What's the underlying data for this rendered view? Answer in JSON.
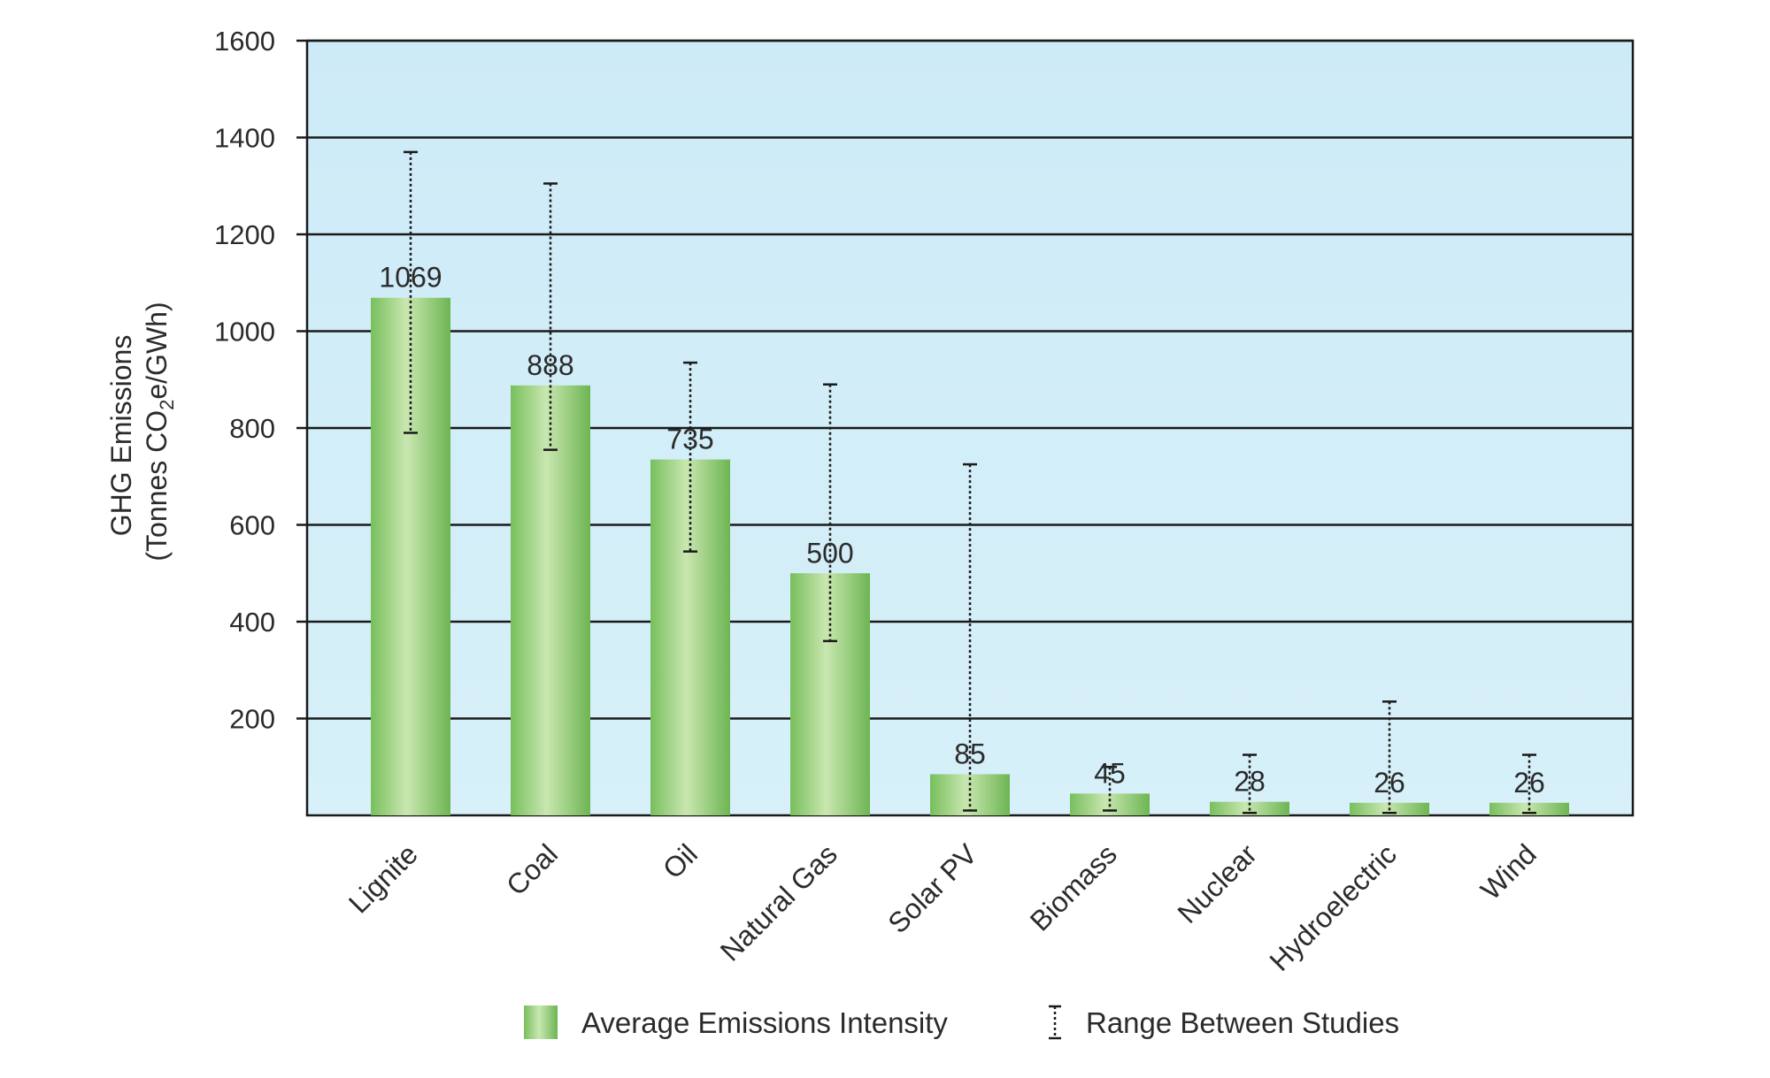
{
  "chart_data": {
    "type": "bar",
    "title": "",
    "xlabel": "",
    "ylabel_line1": "GHG Emissions",
    "ylabel_line2_prefix": "(Tonnes CO",
    "ylabel_line2_sub": "2",
    "ylabel_line2_suffix": "e/GWh)",
    "ylim": [
      0,
      1600
    ],
    "yticks": [
      200,
      400,
      600,
      800,
      1000,
      1200,
      1400,
      1600
    ],
    "grid": true,
    "categories": [
      "Lignite",
      "Coal",
      "Oil",
      "Natural Gas",
      "Solar PV",
      "Biomass",
      "Nuclear",
      "Hydroelectric",
      "Wind"
    ],
    "series": [
      {
        "name": "Average Emissions Intensity",
        "values": [
          1069,
          888,
          735,
          500,
          85,
          45,
          28,
          26,
          26
        ]
      }
    ],
    "range_between_studies": [
      {
        "low": 790,
        "high": 1370
      },
      {
        "low": 755,
        "high": 1305
      },
      {
        "low": 545,
        "high": 935
      },
      {
        "low": 360,
        "high": 890
      },
      {
        "low": 10,
        "high": 725
      },
      {
        "low": 10,
        "high": 100
      },
      {
        "low": 5,
        "high": 125
      },
      {
        "low": 5,
        "high": 235
      },
      {
        "low": 5,
        "high": 125
      }
    ],
    "legend": {
      "position": "bottom",
      "entries": [
        "Average Emissions Intensity",
        "Range Between Studies"
      ]
    },
    "colors": {
      "plot_background": "#d2eef8",
      "bar": "#8fcc74",
      "bar_dark": "#6fb856",
      "bar_light": "#c8e6ad",
      "gridline": "#1a1a1a",
      "text": "#2b2b2b"
    }
  }
}
